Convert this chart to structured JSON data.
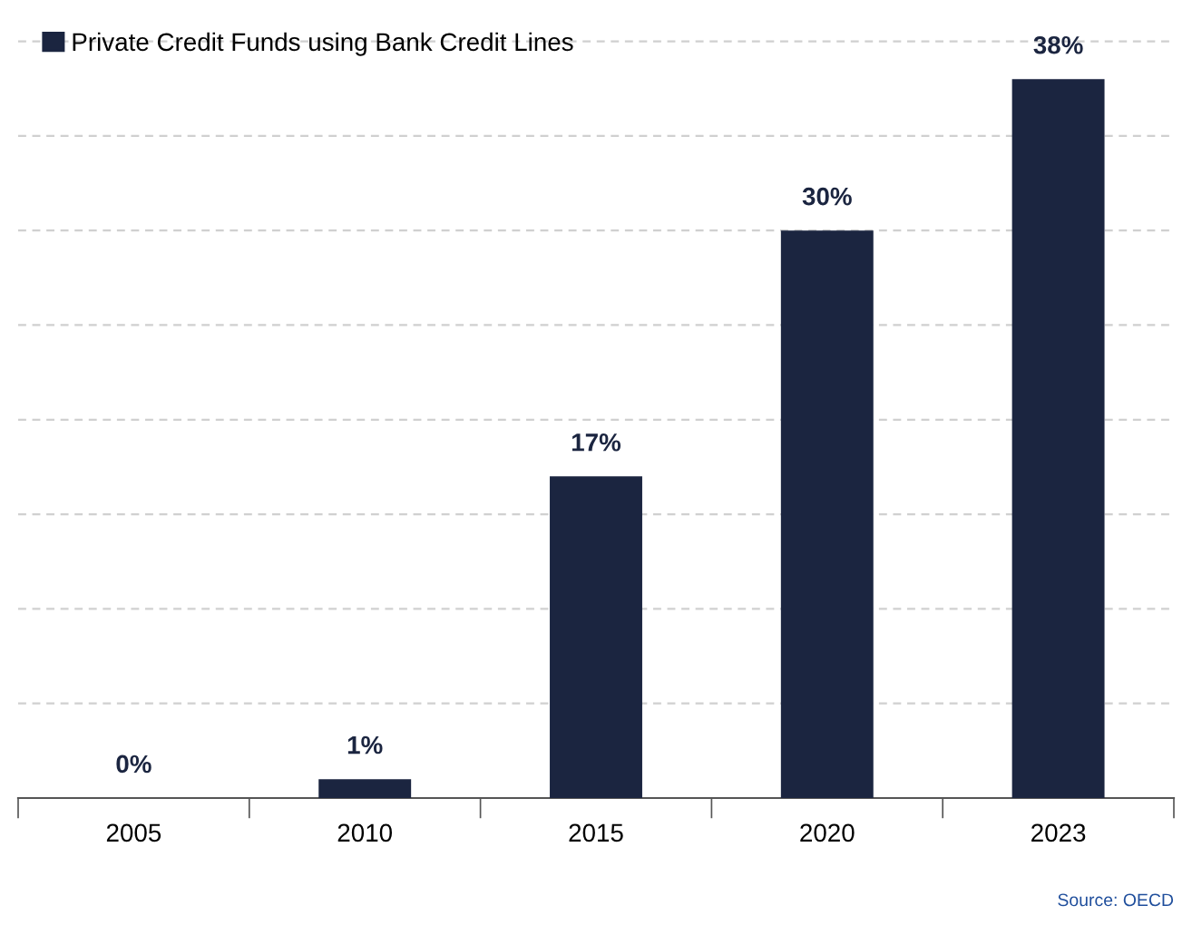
{
  "chart_data": {
    "type": "bar",
    "categories": [
      "2005",
      "2010",
      "2015",
      "2020",
      "2023"
    ],
    "series": [
      {
        "name": "Private Credit Funds using Bank Credit Lines",
        "color": "#1b2540",
        "values": [
          0,
          1,
          17,
          30,
          38
        ],
        "value_labels": [
          "0%",
          "1%",
          "17%",
          "30%",
          "38%"
        ]
      }
    ],
    "tick_labels": "x",
    "grid": "y",
    "legend": "top left",
    "annotations": [
      "Source: OECD"
    ]
  }
}
